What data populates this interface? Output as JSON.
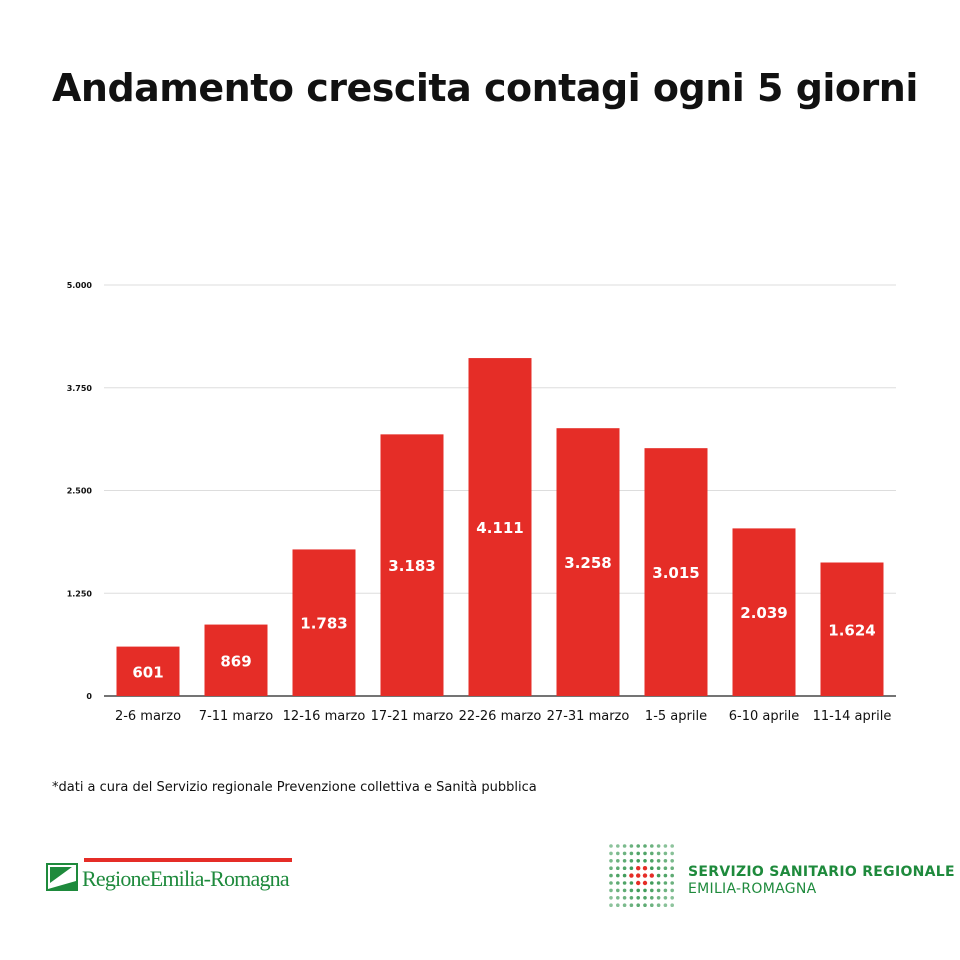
{
  "header": {
    "title": "Andamento crescita contagi ogni 5 giorni"
  },
  "footnote": "*dati a cura del Servizio regionale Prevenzione collettiva e Sanità pubblica",
  "logos": {
    "left_name": "RegioneEmilia-Romagna",
    "right_line1": "SERVIZIO SANITARIO REGIONALE",
    "right_line2": "EMILIA-ROMAGNA"
  },
  "colors": {
    "bar": "#e52d27",
    "grid": "#dddddd",
    "axis": "#222222",
    "brand_green": "#1e8a3c",
    "label": "#ffffff"
  },
  "chart_data": {
    "type": "bar",
    "title": "Andamento crescita contagi ogni 5 giorni",
    "categories": [
      "2-6 marzo",
      "7-11 marzo",
      "12-16 marzo",
      "17-21 marzo",
      "22-26 marzo",
      "27-31 marzo",
      "1-5 aprile",
      "6-10 aprile",
      "11-14 aprile"
    ],
    "values": [
      601,
      869,
      1783,
      3183,
      4111,
      3258,
      3015,
      2039,
      1624
    ],
    "value_labels": [
      "601",
      "869",
      "1.783",
      "3.183",
      "4.111",
      "3.258",
      "3.015",
      "2.039",
      "1.624"
    ],
    "yticks": [
      0,
      1250,
      2500,
      3750,
      5000
    ],
    "ytick_labels": [
      "0",
      "1.250",
      "2.500",
      "3.750",
      "5.000"
    ],
    "ylim": [
      0,
      5000
    ],
    "grid": true,
    "legend": "none"
  }
}
